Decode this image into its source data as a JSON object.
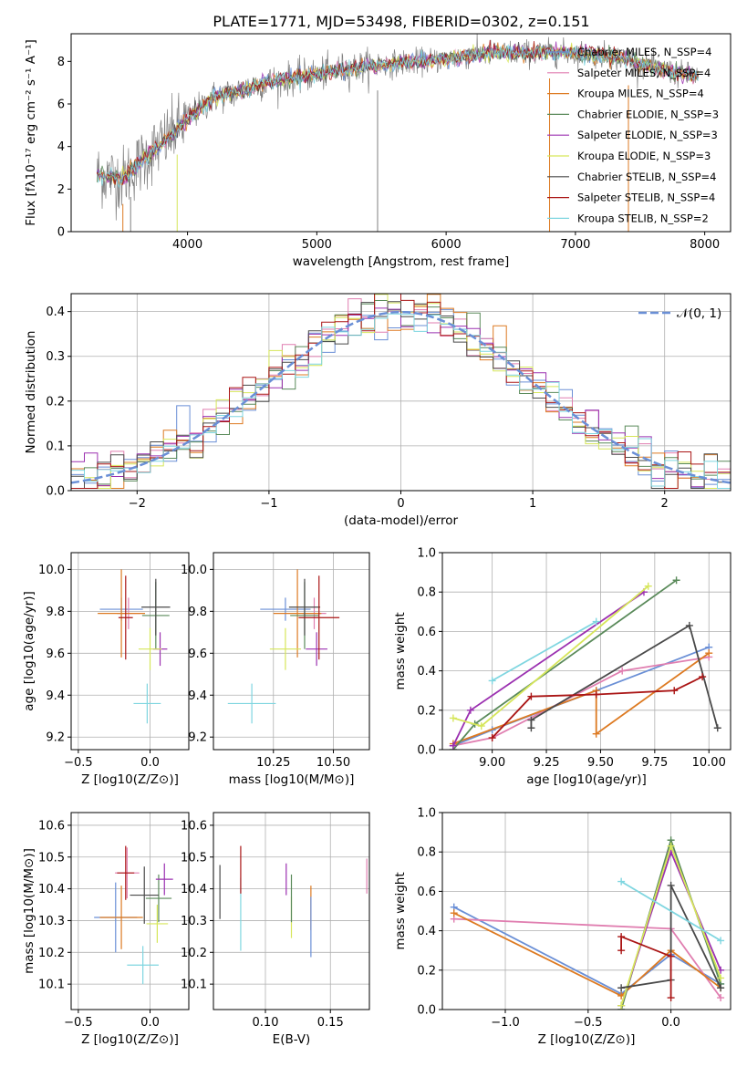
{
  "title": "PLATE=1771, MJD=53498, FIBERID=0302, z=0.151",
  "colors": {
    "Chabrier MILES": "#6a8fd6",
    "Salpeter MILES": "#e07eb0",
    "Kroupa MILES": "#dd7a22",
    "Chabrier ELODIE": "#5a8a5a",
    "Salpeter ELODIE": "#9b30b0",
    "Kroupa ELODIE": "#d6e65a",
    "Chabrier STELIB": "#4a4a4a",
    "Salpeter STELIB": "#aa1515",
    "Kroupa STELIB": "#7fd6e0",
    "data": "#808080",
    "normal": "#6a8fd6"
  },
  "chart_data": [
    {
      "id": "spectrum",
      "type": "line",
      "xlabel": "wavelength [Angstrom, rest frame]",
      "ylabel": "Flux [fλ10⁻¹⁷ erg cm⁻² s⁻¹ A⁻¹]",
      "xlim": [
        3100,
        8200
      ],
      "ylim": [
        0,
        9.3
      ],
      "xticks": [
        4000,
        5000,
        6000,
        7000,
        8000
      ],
      "yticks": [
        0,
        2,
        4,
        6,
        8
      ],
      "legend_position": "top-right",
      "series": [
        {
          "name": "Chabrier MILES, N_SSP=4"
        },
        {
          "name": "Salpeter MILES, N_SSP=4"
        },
        {
          "name": "Kroupa MILES, N_SSP=4"
        },
        {
          "name": "Chabrier ELODIE, N_SSP=3"
        },
        {
          "name": "Salpeter ELODIE, N_SSP=3"
        },
        {
          "name": "Kroupa ELODIE, N_SSP=3"
        },
        {
          "name": "Chabrier STELIB, N_SSP=4"
        },
        {
          "name": "Salpeter STELIB, N_SSP=4"
        },
        {
          "name": "Kroupa STELIB, N_SSP=2"
        }
      ],
      "continuum_x": [
        3300,
        3500,
        3700,
        3900,
        4000,
        4200,
        4400,
        4600,
        4800,
        5000,
        5200,
        5400,
        5600,
        5800,
        6000,
        6200,
        6400,
        6600,
        6800,
        7000,
        7200,
        7400,
        7600,
        7800,
        7950
      ],
      "continuum_y": [
        2.7,
        2.5,
        3.6,
        4.7,
        5.3,
        6.3,
        6.6,
        7.0,
        7.2,
        7.4,
        7.6,
        7.8,
        7.9,
        8.0,
        8.1,
        8.3,
        8.4,
        8.4,
        8.4,
        8.4,
        8.3,
        8.1,
        7.7,
        7.4,
        7.3
      ]
    },
    {
      "id": "residuals",
      "type": "line",
      "xlabel": "(data-model)/error",
      "ylabel": "Normed distribution",
      "xlim": [
        -2.5,
        2.5
      ],
      "ylim": [
        0,
        0.44
      ],
      "xticks": [
        -2,
        -1,
        0,
        1,
        2
      ],
      "yticks": [
        0.0,
        0.1,
        0.2,
        0.3,
        0.4
      ],
      "grid": true,
      "legend_position": "top-right",
      "reference": {
        "name": "𝒩(0, 1)",
        "mean": 0,
        "sigma": 1
      }
    },
    {
      "id": "age-vs-Z",
      "type": "scatter",
      "xlabel": "Z [log10(Z/Z⊙)]",
      "ylabel": "age  [log10(age/yr)]",
      "xlim": [
        -0.55,
        0.27
      ],
      "ylim": [
        9.14,
        10.08
      ],
      "xticks": [
        -0.5,
        0.0
      ],
      "yticks": [
        9.2,
        9.4,
        9.6,
        9.8,
        10.0
      ],
      "grid": true,
      "points": [
        {
          "s": "Chabrier MILES",
          "x": -0.2,
          "y": 9.81,
          "ex": 0.3,
          "ey": 0.11
        },
        {
          "s": "Salpeter MILES",
          "x": -0.15,
          "y": 9.79,
          "ex": 0.16,
          "ey": 0.15
        },
        {
          "s": "Kroupa MILES",
          "x": -0.2,
          "y": 9.79,
          "ex": 0.33,
          "ey": 0.42
        },
        {
          "s": "Chabrier ELODIE",
          "x": 0.04,
          "y": 9.78,
          "ex": 0.19,
          "ey": 0.32
        },
        {
          "s": "Salpeter ELODIE",
          "x": 0.07,
          "y": 9.62,
          "ex": 0.1,
          "ey": 0.16
        },
        {
          "s": "Kroupa ELODIE",
          "x": 0.0,
          "y": 9.62,
          "ex": 0.16,
          "ey": 0.2
        },
        {
          "s": "Chabrier STELIB",
          "x": 0.04,
          "y": 9.82,
          "ex": 0.2,
          "ey": 0.27
        },
        {
          "s": "Salpeter STELIB",
          "x": -0.17,
          "y": 9.77,
          "ex": 0.1,
          "ey": 0.4
        },
        {
          "s": "Kroupa STELIB",
          "x": -0.02,
          "y": 9.36,
          "ex": 0.19,
          "ey": 0.19
        }
      ]
    },
    {
      "id": "age-vs-mass",
      "type": "scatter",
      "xlabel": "mass [log10(M/M⊙)]",
      "ylabel": "",
      "xlim": [
        10.0,
        10.65
      ],
      "ylim": [
        9.14,
        10.08
      ],
      "xticks": [
        10.25,
        10.5
      ],
      "yticks": [
        9.2,
        9.4,
        9.6,
        9.8,
        10.0
      ],
      "grid": true,
      "points": [
        {
          "s": "Chabrier MILES",
          "x": 10.3,
          "y": 9.81,
          "ex": 0.21,
          "ey": 0.11
        },
        {
          "s": "Salpeter MILES",
          "x": 10.42,
          "y": 9.79,
          "ex": 0.1,
          "ey": 0.15
        },
        {
          "s": "Kroupa MILES",
          "x": 10.35,
          "y": 9.79,
          "ex": 0.2,
          "ey": 0.42
        },
        {
          "s": "Chabrier ELODIE",
          "x": 10.38,
          "y": 9.78,
          "ex": 0.12,
          "ey": 0.32
        },
        {
          "s": "Salpeter ELODIE",
          "x": 10.43,
          "y": 9.62,
          "ex": 0.09,
          "ey": 0.16
        },
        {
          "s": "Kroupa ELODIE",
          "x": 10.3,
          "y": 9.62,
          "ex": 0.13,
          "ey": 0.2
        },
        {
          "s": "Chabrier STELIB",
          "x": 10.38,
          "y": 9.82,
          "ex": 0.13,
          "ey": 0.27
        },
        {
          "s": "Salpeter STELIB",
          "x": 10.44,
          "y": 9.77,
          "ex": 0.17,
          "ey": 0.4
        },
        {
          "s": "Kroupa STELIB",
          "x": 10.16,
          "y": 9.36,
          "ex": 0.2,
          "ey": 0.19
        }
      ]
    },
    {
      "id": "massweight-vs-age",
      "type": "line",
      "xlabel": "age  [log10(age/yr)]",
      "ylabel": "mass weight",
      "xlim": [
        8.77,
        10.1
      ],
      "ylim": [
        0,
        1.0
      ],
      "xticks": [
        9.0,
        9.25,
        9.5,
        9.75,
        10.0
      ],
      "yticks": [
        0.0,
        0.2,
        0.4,
        0.6,
        0.8,
        1.0
      ],
      "grid": true,
      "series": [
        {
          "s": "Chabrier MILES",
          "x": [
            8.82,
            9.0,
            9.48,
            10.0
          ],
          "y": [
            0.02,
            0.1,
            0.3,
            0.52
          ]
        },
        {
          "s": "Salpeter MILES",
          "x": [
            8.82,
            9.0,
            9.6,
            10.0
          ],
          "y": [
            0.02,
            0.06,
            0.4,
            0.47
          ]
        },
        {
          "s": "Kroupa MILES",
          "x": [
            8.82,
            9.48,
            9.48,
            10.0
          ],
          "y": [
            0.03,
            0.3,
            0.08,
            0.49
          ]
        },
        {
          "s": "Chabrier ELODIE",
          "x": [
            8.82,
            8.92,
            9.85
          ],
          "y": [
            0.0,
            0.13,
            0.86
          ]
        },
        {
          "s": "Salpeter ELODIE",
          "x": [
            8.82,
            8.9,
            9.7
          ],
          "y": [
            0.02,
            0.2,
            0.8
          ]
        },
        {
          "s": "Kroupa ELODIE",
          "x": [
            8.82,
            8.95,
            9.72
          ],
          "y": [
            0.16,
            0.12,
            0.83
          ]
        },
        {
          "s": "Chabrier STELIB",
          "x": [
            9.18,
            9.18,
            9.91,
            10.04
          ],
          "y": [
            0.11,
            0.15,
            0.63,
            0.11
          ]
        },
        {
          "s": "Salpeter STELIB",
          "x": [
            9.0,
            9.18,
            9.48,
            9.84,
            9.97
          ],
          "y": [
            0.06,
            0.27,
            0.28,
            0.3,
            0.37
          ]
        },
        {
          "s": "Kroupa STELIB",
          "x": [
            9.0,
            9.48
          ],
          "y": [
            0.35,
            0.65
          ]
        }
      ]
    },
    {
      "id": "mass-vs-Z",
      "type": "scatter",
      "xlabel": "Z [log10(Z/Z⊙)]",
      "ylabel": "mass [log10(M/M⊙)]",
      "xlim": [
        -0.55,
        0.27
      ],
      "ylim": [
        10.02,
        10.64
      ],
      "xticks": [
        -0.5,
        0.0
      ],
      "yticks": [
        10.1,
        10.2,
        10.3,
        10.4,
        10.5,
        10.6
      ],
      "grid": true,
      "points": [
        {
          "s": "Chabrier MILES",
          "x": -0.24,
          "y": 10.31,
          "ex": 0.3,
          "ey": 0.22
        },
        {
          "s": "Salpeter MILES",
          "x": -0.16,
          "y": 10.45,
          "ex": 0.17,
          "ey": 0.16
        },
        {
          "s": "Kroupa MILES",
          "x": -0.2,
          "y": 10.31,
          "ex": 0.3,
          "ey": 0.2
        },
        {
          "s": "Chabrier ELODIE",
          "x": 0.06,
          "y": 10.37,
          "ex": 0.18,
          "ey": 0.15
        },
        {
          "s": "Salpeter ELODIE",
          "x": 0.1,
          "y": 10.43,
          "ex": 0.12,
          "ey": 0.1
        },
        {
          "s": "Kroupa ELODIE",
          "x": 0.05,
          "y": 10.29,
          "ex": 0.15,
          "ey": 0.12
        },
        {
          "s": "Chabrier STELIB",
          "x": -0.04,
          "y": 10.38,
          "ex": 0.2,
          "ey": 0.18
        },
        {
          "s": "Salpeter STELIB",
          "x": -0.17,
          "y": 10.45,
          "ex": 0.12,
          "ey": 0.17
        },
        {
          "s": "Kroupa STELIB",
          "x": -0.05,
          "y": 10.16,
          "ex": 0.22,
          "ey": 0.12
        }
      ]
    },
    {
      "id": "mass-vs-ebv",
      "type": "scatter",
      "xlabel": "E(B-V)",
      "ylabel": "",
      "xlim": [
        0.06,
        0.18
      ],
      "ylim": [
        10.02,
        10.64
      ],
      "xticks": [
        0.1,
        0.15
      ],
      "yticks": [
        10.1,
        10.2,
        10.3,
        10.4,
        10.5,
        10.6
      ],
      "grid": true,
      "points": [
        {
          "s": "Chabrier STELIB",
          "x": 0.065,
          "y": 10.39,
          "ey": 0.17
        },
        {
          "s": "Kroupa STELIB",
          "x": 0.081,
          "y": 10.32,
          "ey": 0.23
        },
        {
          "s": "Salpeter STELIB",
          "x": 0.081,
          "y": 10.46,
          "ey": 0.15
        },
        {
          "s": "Salpeter ELODIE",
          "x": 0.116,
          "y": 10.43,
          "ey": 0.1
        },
        {
          "s": "Kroupa ELODIE",
          "x": 0.12,
          "y": 10.31,
          "ey": 0.13
        },
        {
          "s": "Chabrier ELODIE",
          "x": 0.12,
          "y": 10.37,
          "ey": 0.15
        },
        {
          "s": "Kroupa MILES",
          "x": 0.135,
          "y": 10.34,
          "ey": 0.14
        },
        {
          "s": "Chabrier MILES",
          "x": 0.135,
          "y": 10.28,
          "ey": 0.19
        },
        {
          "s": "Salpeter MILES",
          "x": 0.178,
          "y": 10.44,
          "ey": 0.11
        }
      ]
    },
    {
      "id": "massweight-vs-Z",
      "type": "line",
      "xlabel": "Z [log10(Z/Z⊙)]",
      "ylabel": "mass weight",
      "xlim": [
        -1.38,
        0.36
      ],
      "ylim": [
        0,
        1.0
      ],
      "xticks": [
        -1.0,
        -0.5,
        0.0
      ],
      "yticks": [
        0.0,
        0.2,
        0.4,
        0.6,
        0.8,
        1.0
      ],
      "grid": true,
      "series": [
        {
          "s": "Chabrier MILES",
          "x": [
            -1.31,
            -0.3,
            0.0,
            0.3
          ],
          "y": [
            0.52,
            0.08,
            0.28,
            0.13
          ]
        },
        {
          "s": "Salpeter MILES",
          "x": [
            -1.31,
            0.0,
            0.3
          ],
          "y": [
            0.46,
            0.41,
            0.06
          ]
        },
        {
          "s": "Kroupa MILES",
          "x": [
            -1.31,
            -0.3,
            0.0,
            0.3
          ],
          "y": [
            0.49,
            0.07,
            0.3,
            0.11
          ]
        },
        {
          "s": "Chabrier ELODIE",
          "x": [
            -0.3,
            0.0,
            0.3
          ],
          "y": [
            0.0,
            0.86,
            0.13
          ]
        },
        {
          "s": "Salpeter ELODIE",
          "x": [
            -0.3,
            0.0,
            0.3
          ],
          "y": [
            0.02,
            0.8,
            0.2
          ]
        },
        {
          "s": "Kroupa ELODIE",
          "x": [
            -0.3,
            0.0,
            0.3
          ],
          "y": [
            0.02,
            0.83,
            0.16
          ]
        },
        {
          "s": "Chabrier STELIB",
          "x": [
            -0.3,
            0.0,
            0.0,
            0.3
          ],
          "y": [
            0.11,
            0.15,
            0.63,
            0.11
          ]
        },
        {
          "s": "Salpeter STELIB",
          "x": [
            -0.3,
            -0.3,
            0.0,
            0.0
          ],
          "y": [
            0.3,
            0.37,
            0.27,
            0.06
          ]
        },
        {
          "s": "Kroupa STELIB",
          "x": [
            -0.3,
            0.3
          ],
          "y": [
            0.65,
            0.35
          ]
        }
      ]
    }
  ]
}
